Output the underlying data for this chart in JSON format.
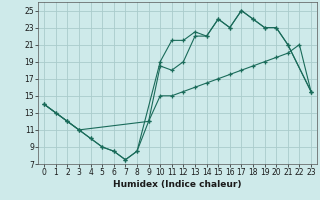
{
  "xlabel": "Humidex (Indice chaleur)",
  "bg_color": "#ceeaea",
  "grid_color": "#aacccc",
  "line_color": "#1a6b5a",
  "xlim": [
    -0.5,
    23.5
  ],
  "ylim": [
    7,
    26
  ],
  "xticks": [
    0,
    1,
    2,
    3,
    4,
    5,
    6,
    7,
    8,
    9,
    10,
    11,
    12,
    13,
    14,
    15,
    16,
    17,
    18,
    19,
    20,
    21,
    22,
    23
  ],
  "yticks": [
    7,
    9,
    11,
    13,
    15,
    17,
    19,
    21,
    23,
    25
  ],
  "series1_x": [
    0,
    1,
    2,
    3,
    4,
    5,
    6,
    7,
    8,
    9,
    10,
    11,
    12,
    13,
    14,
    15,
    16,
    17,
    18,
    19,
    20,
    21,
    22,
    23
  ],
  "series1_y": [
    14,
    13,
    12,
    11,
    10,
    9,
    8.5,
    7.5,
    8.5,
    12,
    15,
    15,
    15.5,
    16,
    16.5,
    17,
    17.5,
    18,
    18.5,
    19,
    19.5,
    20,
    21,
    15.5
  ],
  "series2_x": [
    0,
    1,
    2,
    3,
    4,
    5,
    6,
    7,
    8,
    10,
    11,
    12,
    13,
    14,
    15,
    16,
    17,
    18,
    19,
    20,
    21,
    23
  ],
  "series2_y": [
    14,
    13,
    12,
    11,
    10,
    9,
    8.5,
    7.5,
    8.5,
    19,
    21.5,
    21.5,
    22.5,
    22,
    24,
    23,
    25,
    24,
    23,
    23,
    21,
    15.5
  ],
  "series3_x": [
    0,
    2,
    3,
    9,
    10,
    11,
    12,
    13,
    14,
    15,
    16,
    17,
    18,
    19,
    20,
    21,
    23
  ],
  "series3_y": [
    14,
    12,
    11,
    12,
    18.5,
    18,
    19,
    22,
    22,
    24,
    23,
    25,
    24,
    23,
    23,
    21,
    15.5
  ]
}
